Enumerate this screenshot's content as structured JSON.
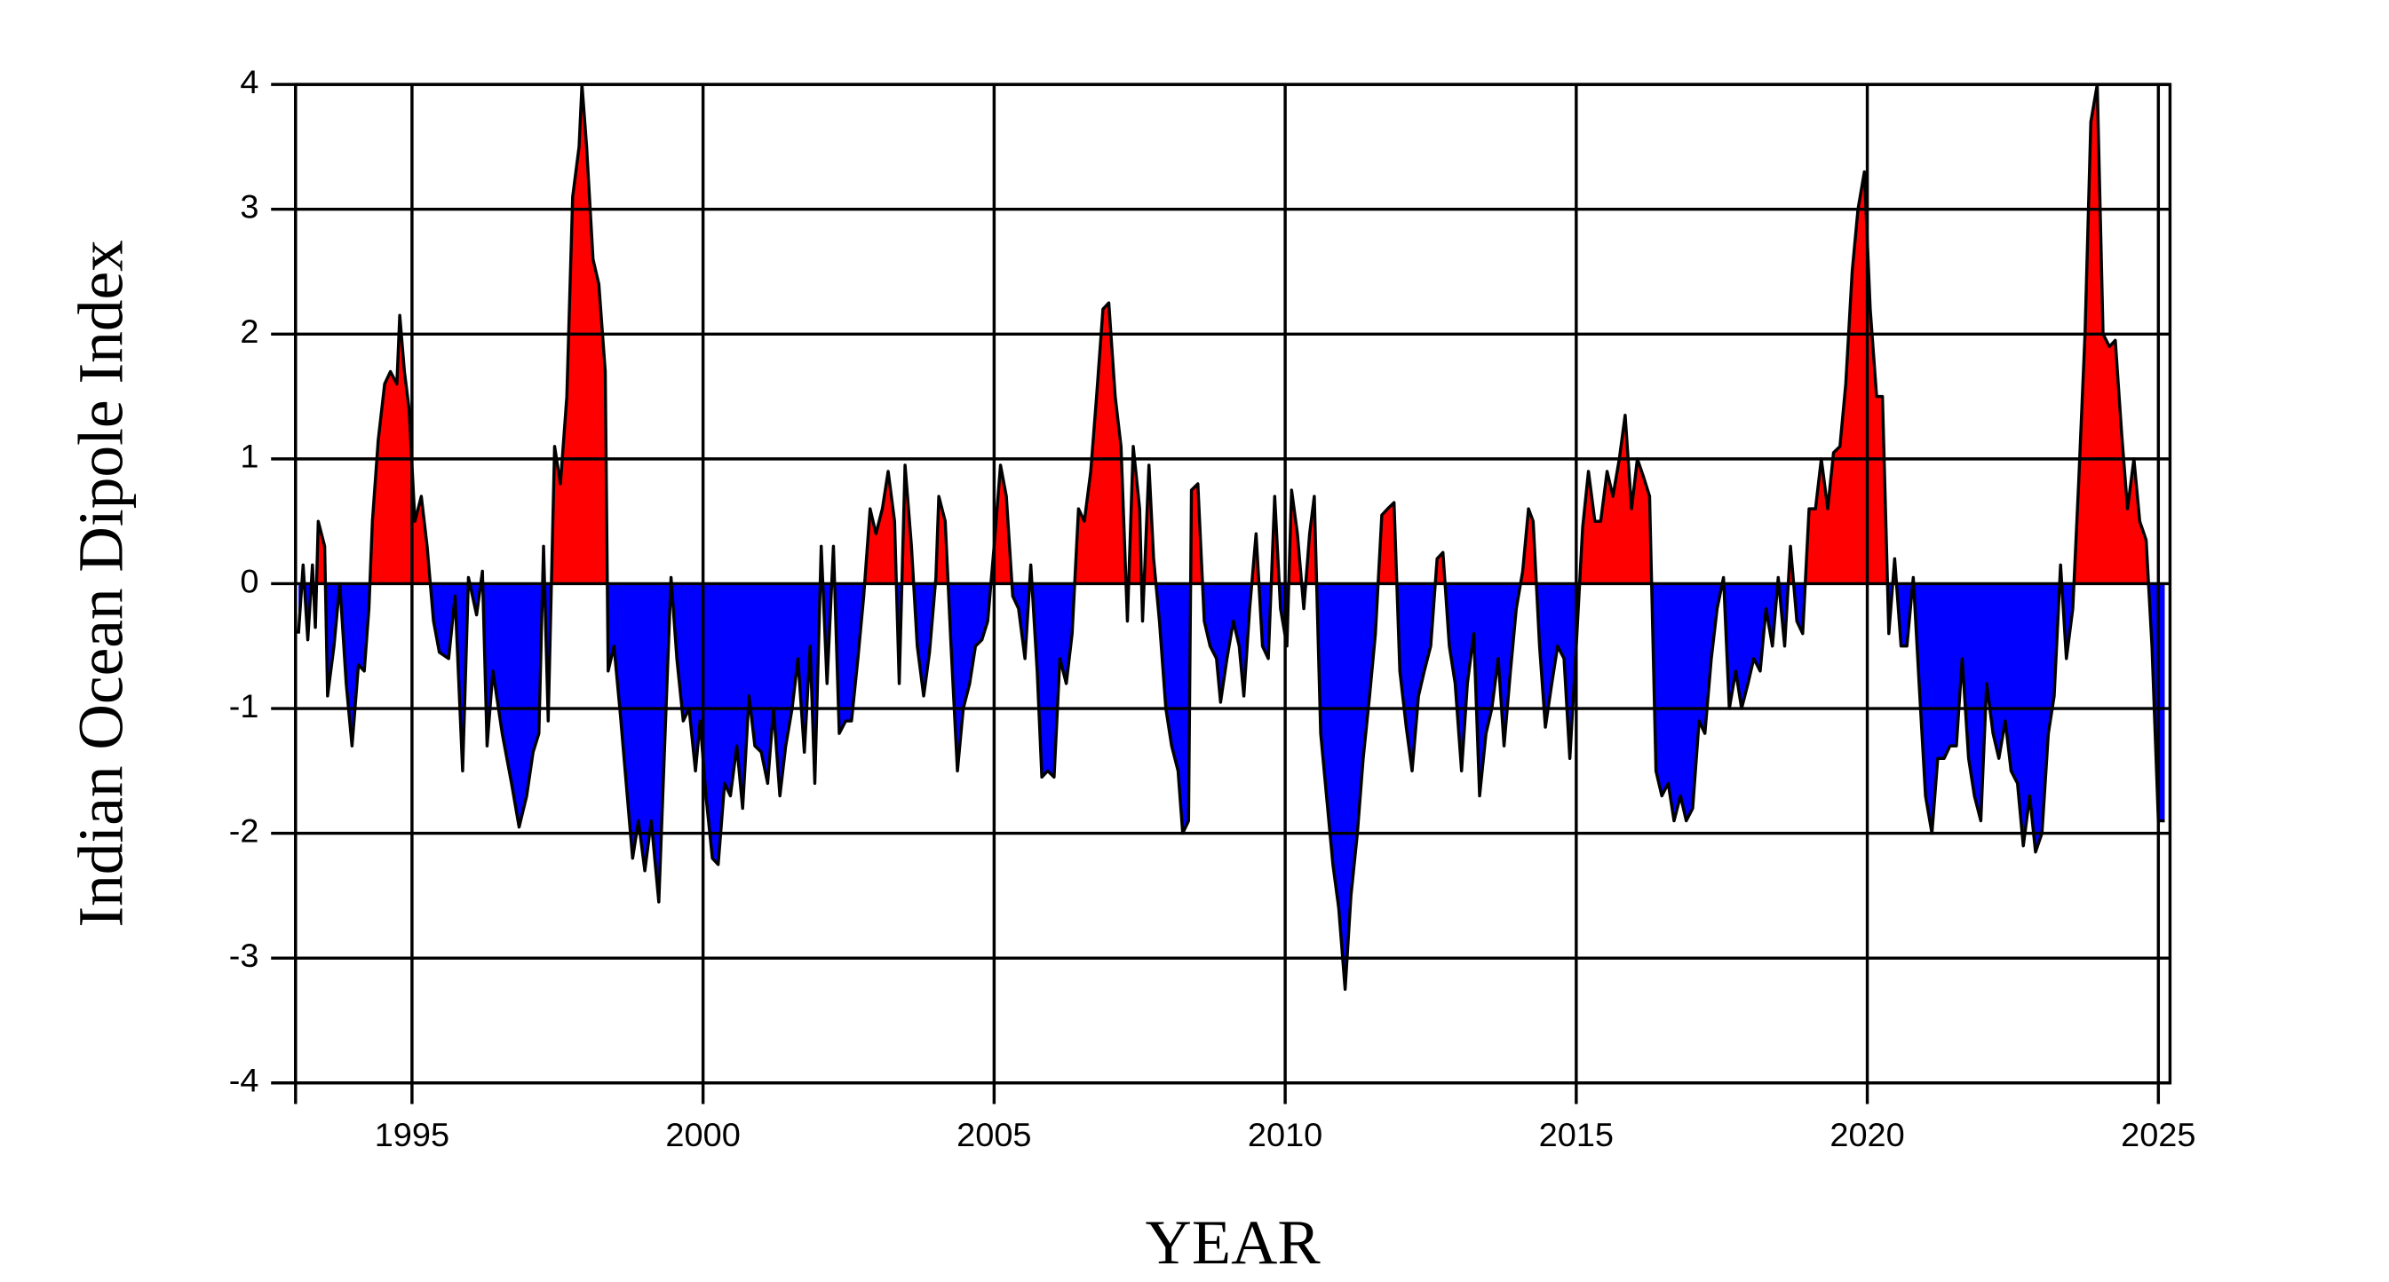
{
  "chart_data": {
    "type": "area",
    "y_axis_label": "Indian Ocean Dipole Index",
    "x_axis_label": "YEAR",
    "xlim": [
      1993,
      2025.2
    ],
    "xticks": [
      1995,
      2000,
      2005,
      2010,
      2015,
      2020,
      2025
    ],
    "ylim": [
      -4,
      4
    ],
    "yticks": [
      -4,
      -3,
      -2,
      -1,
      0,
      1,
      2,
      3,
      4
    ],
    "grid": true,
    "positive_color": "#ff0000",
    "negative_color": "#0000ff",
    "line_color": "#000000",
    "x": [
      1993.05,
      1993.13,
      1993.21,
      1993.29,
      1993.34,
      1993.39,
      1993.5,
      1993.55,
      1993.66,
      1993.76,
      1993.87,
      1993.97,
      1994.08,
      1994.18,
      1994.26,
      1994.32,
      1994.42,
      1994.53,
      1994.63,
      1994.74,
      1994.79,
      1994.87,
      1994.95,
      1995.05,
      1995.16,
      1995.26,
      1995.37,
      1995.47,
      1995.63,
      1995.74,
      1995.87,
      1995.97,
      1996.11,
      1996.21,
      1996.29,
      1996.39,
      1996.55,
      1996.71,
      1996.84,
      1996.97,
      1997.08,
      1997.18,
      1997.26,
      1997.34,
      1997.45,
      1997.55,
      1997.66,
      1997.76,
      1997.87,
      1997.92,
      1998.0,
      1998.11,
      1998.21,
      1998.32,
      1998.37,
      1998.47,
      1998.58,
      1998.68,
      1998.79,
      1998.89,
      1999.0,
      1999.11,
      1999.24,
      1999.34,
      1999.45,
      1999.55,
      1999.66,
      1999.76,
      1999.87,
      1999.95,
      2000.05,
      2000.16,
      2000.26,
      2000.37,
      2000.47,
      2000.58,
      2000.68,
      2000.79,
      2000.89,
      2001.0,
      2001.11,
      2001.21,
      2001.32,
      2001.42,
      2001.53,
      2001.63,
      2001.74,
      2001.84,
      2001.92,
      2002.03,
      2002.13,
      2002.24,
      2002.34,
      2002.45,
      2002.55,
      2002.66,
      2002.76,
      2002.87,
      2002.97,
      2003.08,
      2003.18,
      2003.29,
      2003.37,
      2003.47,
      2003.58,
      2003.68,
      2003.79,
      2003.89,
      2004.0,
      2004.05,
      2004.16,
      2004.26,
      2004.37,
      2004.47,
      2004.58,
      2004.68,
      2004.79,
      2004.89,
      2005.0,
      2005.11,
      2005.21,
      2005.32,
      2005.42,
      2005.53,
      2005.63,
      2005.74,
      2005.82,
      2005.92,
      2006.03,
      2006.13,
      2006.24,
      2006.34,
      2006.45,
      2006.55,
      2006.66,
      2006.76,
      2006.87,
      2006.97,
      2007.08,
      2007.18,
      2007.29,
      2007.39,
      2007.5,
      2007.55,
      2007.66,
      2007.74,
      2007.84,
      2007.95,
      2008.05,
      2008.16,
      2008.24,
      2008.34,
      2008.39,
      2008.5,
      2008.61,
      2008.71,
      2008.82,
      2008.89,
      2009.0,
      2009.11,
      2009.21,
      2009.29,
      2009.39,
      2009.5,
      2009.61,
      2009.71,
      2009.82,
      2009.92,
      2010.03,
      2010.11,
      2010.21,
      2010.32,
      2010.42,
      2010.5,
      2010.61,
      2010.71,
      2010.82,
      2010.92,
      2011.03,
      2011.13,
      2011.24,
      2011.34,
      2011.45,
      2011.55,
      2011.66,
      2011.76,
      2011.87,
      2011.97,
      2012.08,
      2012.18,
      2012.29,
      2012.39,
      2012.5,
      2012.61,
      2012.71,
      2012.82,
      2012.92,
      2013.03,
      2013.13,
      2013.24,
      2013.34,
      2013.45,
      2013.55,
      2013.66,
      2013.76,
      2013.87,
      2013.97,
      2014.08,
      2014.18,
      2014.26,
      2014.37,
      2014.47,
      2014.58,
      2014.68,
      2014.79,
      2014.89,
      2015.0,
      2015.11,
      2015.21,
      2015.32,
      2015.42,
      2015.53,
      2015.63,
      2015.74,
      2015.84,
      2015.95,
      2016.05,
      2016.16,
      2016.26,
      2016.37,
      2016.47,
      2016.58,
      2016.68,
      2016.79,
      2016.89,
      2017.0,
      2017.11,
      2017.21,
      2017.32,
      2017.42,
      2017.53,
      2017.63,
      2017.74,
      2017.84,
      2017.95,
      2018.05,
      2018.16,
      2018.26,
      2018.37,
      2018.47,
      2018.58,
      2018.68,
      2018.79,
      2018.89,
      2019.0,
      2019.11,
      2019.21,
      2019.32,
      2019.42,
      2019.53,
      2019.63,
      2019.74,
      2019.84,
      2019.95,
      2020.05,
      2020.16,
      2020.26,
      2020.37,
      2020.47,
      2020.58,
      2020.68,
      2020.79,
      2020.89,
      2021.0,
      2021.11,
      2021.21,
      2021.32,
      2021.42,
      2021.53,
      2021.63,
      2021.74,
      2021.84,
      2021.95,
      2022.05,
      2022.16,
      2022.26,
      2022.37,
      2022.47,
      2022.58,
      2022.68,
      2022.79,
      2022.89,
      2023.0,
      2023.11,
      2023.21,
      2023.32,
      2023.42,
      2023.53,
      2023.63,
      2023.74,
      2023.84,
      2023.95,
      2024.05,
      2024.16,
      2024.26,
      2024.37,
      2024.47,
      2024.58,
      2024.68,
      2024.79,
      2024.89,
      2025.0,
      2025.11
    ],
    "values": [
      -0.4,
      0.15,
      -0.45,
      0.15,
      -0.35,
      0.5,
      0.3,
      -0.9,
      -0.5,
      0.0,
      -0.8,
      -1.3,
      -0.65,
      -0.7,
      -0.2,
      0.5,
      1.15,
      1.6,
      1.7,
      1.6,
      2.15,
      1.7,
      1.4,
      0.5,
      0.7,
      0.3,
      -0.3,
      -0.55,
      -0.6,
      -0.1,
      -1.5,
      0.05,
      -0.25,
      0.1,
      -1.3,
      -0.7,
      -1.2,
      -1.6,
      -1.95,
      -1.7,
      -1.35,
      -1.2,
      0.3,
      -1.1,
      1.1,
      0.8,
      1.5,
      3.1,
      3.5,
      4.0,
      3.5,
      2.6,
      2.4,
      1.7,
      -0.7,
      -0.5,
      -1.05,
      -1.6,
      -2.2,
      -1.9,
      -2.3,
      -1.9,
      -2.55,
      -1.3,
      0.05,
      -0.6,
      -1.1,
      -1.0,
      -1.5,
      -1.1,
      -1.7,
      -2.2,
      -2.25,
      -1.6,
      -1.7,
      -1.3,
      -1.8,
      -0.9,
      -1.3,
      -1.35,
      -1.6,
      -1.0,
      -1.7,
      -1.3,
      -1.0,
      -0.6,
      -1.35,
      -0.5,
      -1.6,
      0.3,
      -0.8,
      0.3,
      -1.2,
      -1.1,
      -1.1,
      -0.6,
      -0.1,
      0.6,
      0.4,
      0.6,
      0.9,
      0.5,
      -0.8,
      0.95,
      0.3,
      -0.5,
      -0.9,
      -0.55,
      0.05,
      0.7,
      0.5,
      -0.5,
      -1.5,
      -1.0,
      -0.8,
      -0.5,
      -0.45,
      -0.3,
      0.3,
      0.95,
      0.7,
      -0.1,
      -0.2,
      -0.6,
      0.15,
      -0.7,
      -1.55,
      -1.5,
      -1.55,
      -0.6,
      -0.8,
      -0.4,
      0.6,
      0.5,
      0.9,
      1.5,
      2.2,
      2.25,
      1.5,
      1.1,
      -0.3,
      1.1,
      0.6,
      -0.3,
      0.95,
      0.2,
      -0.3,
      -1.0,
      -1.3,
      -1.5,
      -2.0,
      -1.9,
      0.75,
      0.8,
      -0.3,
      -0.5,
      -0.6,
      -0.95,
      -0.6,
      -0.3,
      -0.5,
      -0.9,
      -0.2,
      0.4,
      -0.5,
      -0.6,
      0.7,
      -0.2,
      -0.5,
      0.75,
      0.4,
      -0.2,
      0.4,
      0.7,
      -1.2,
      -1.7,
      -2.25,
      -2.6,
      -3.25,
      -2.5,
      -2.0,
      -1.4,
      -0.9,
      -0.4,
      0.55,
      0.6,
      0.65,
      -0.7,
      -1.15,
      -1.5,
      -0.9,
      -0.7,
      -0.5,
      0.2,
      0.25,
      -0.5,
      -0.8,
      -1.5,
      -0.8,
      -0.4,
      -1.7,
      -1.2,
      -1.0,
      -0.6,
      -1.3,
      -0.7,
      -0.2,
      0.1,
      0.6,
      0.5,
      -0.5,
      -1.15,
      -0.8,
      -0.5,
      -0.6,
      -1.4,
      -0.5,
      0.45,
      0.9,
      0.5,
      0.5,
      0.9,
      0.7,
      1.0,
      1.35,
      0.6,
      1.0,
      0.85,
      0.7,
      -1.5,
      -1.7,
      -1.6,
      -1.9,
      -1.7,
      -1.9,
      -1.8,
      -1.1,
      -1.2,
      -0.6,
      -0.2,
      0.05,
      -1.0,
      -0.7,
      -1.0,
      -0.8,
      -0.6,
      -0.7,
      -0.2,
      -0.5,
      0.05,
      -0.5,
      0.3,
      -0.3,
      -0.4,
      0.6,
      0.6,
      1.0,
      0.6,
      1.05,
      1.1,
      1.6,
      2.5,
      3.0,
      3.3,
      2.2,
      1.5,
      1.5,
      -0.4,
      0.2,
      -0.5,
      -0.5,
      0.05,
      -0.8,
      -1.7,
      -2.0,
      -1.4,
      -1.4,
      -1.3,
      -1.3,
      -0.6,
      -1.4,
      -1.7,
      -1.9,
      -0.8,
      -1.2,
      -1.4,
      -1.1,
      -1.5,
      -1.6,
      -2.1,
      -1.7,
      -2.15,
      -2.0,
      -1.2,
      -0.9,
      0.15,
      -0.6,
      -0.2,
      0.8,
      2.0,
      3.7,
      4.0,
      2.0,
      1.9,
      1.95,
      1.2,
      0.6,
      1.0,
      0.5,
      0.35,
      -0.5,
      -1.9,
      -1.9
    ]
  }
}
